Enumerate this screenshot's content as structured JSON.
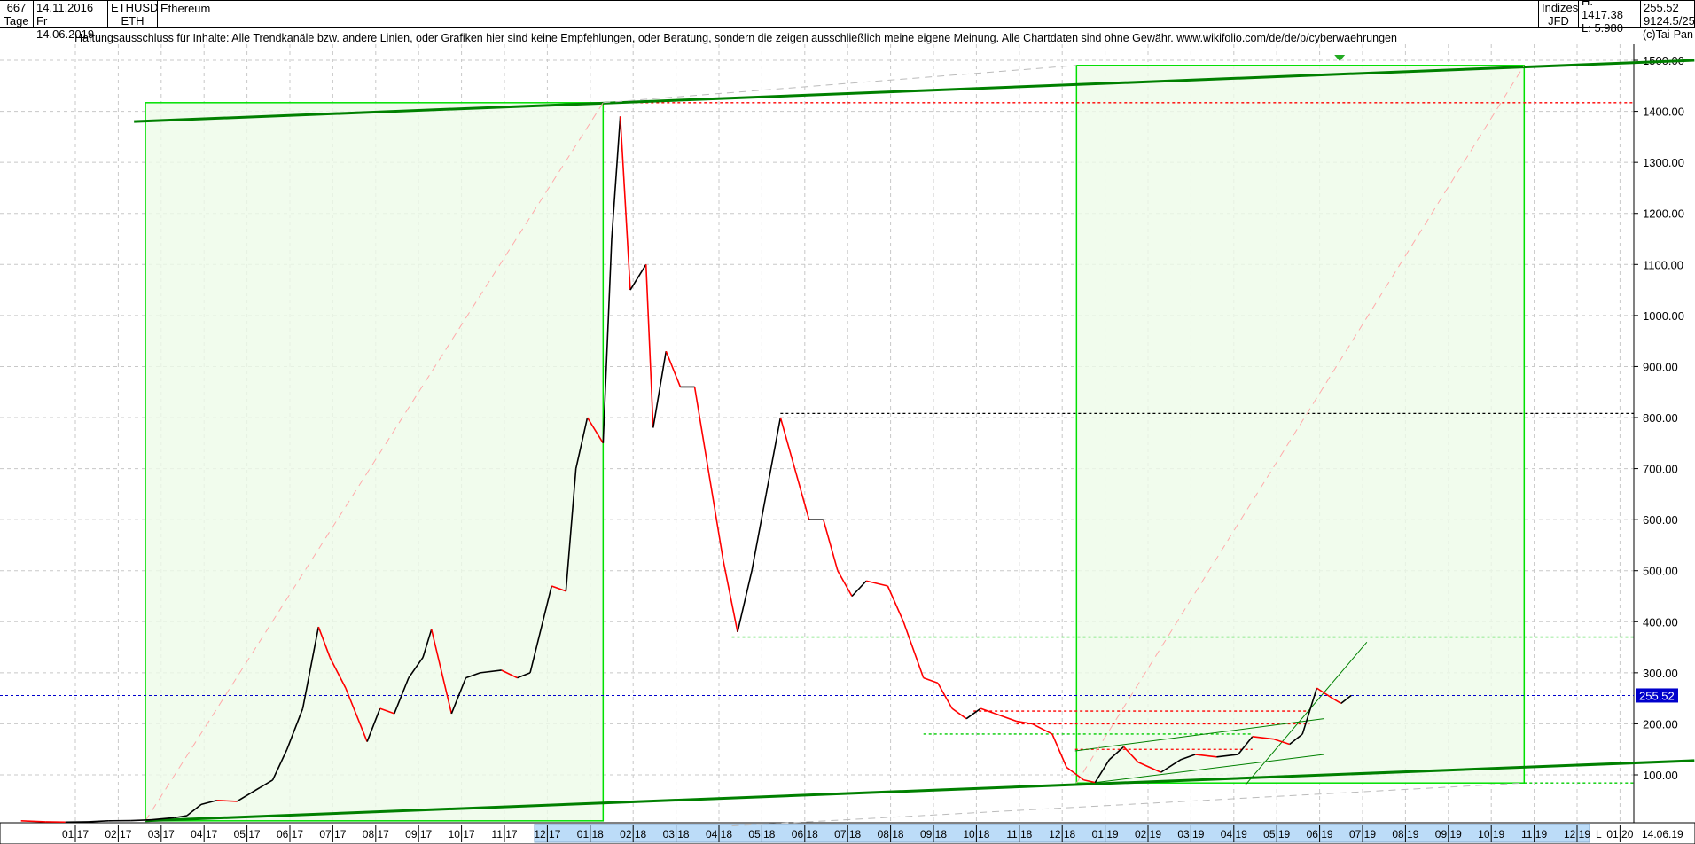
{
  "header": {
    "bars": "667",
    "period": "Tage",
    "date_from": "Mo 14.11.2016",
    "date_to": "Fr 14.06.2019",
    "symbol": "ETHUSD",
    "symbol_short": "ETH",
    "name": "Ethereum",
    "index_label": "Indizes",
    "exchange": "JFD",
    "high": "H: 1417.38",
    "low": "L: 5.980",
    "last": "255.52",
    "extra": "9124.5/25"
  },
  "disclaimer": "Haftungsausschluss für Inhalte: Alle Trendkanäle bzw. andere Linien, oder Grafiken hier sind keine Empfehlungen, oder Beratung, sondern die zeigen ausschließlich meine eigene Meinung. Alle Chartdaten sind ohne Gewähr.  www.wikifolio.com/de/de/p/cyberwaehrungen",
  "copyright": "(c)Tai-Pan",
  "chart_data": {
    "type": "line",
    "title": "Ethereum",
    "ylim": [
      0,
      1560
    ],
    "y_ticks": [
      100,
      200,
      300,
      400,
      500,
      600,
      700,
      800,
      900,
      1000,
      1100,
      1200,
      1300,
      1400,
      1500
    ],
    "y_tick_labels": [
      "100.00",
      "200.00",
      "300.00",
      "400.00",
      "500.00",
      "600.00",
      "700.00",
      "800.00",
      "900.00",
      "1000.00",
      "1100.00",
      "1200.00",
      "1300.00",
      "1400.00",
      "1500.00"
    ],
    "x_ticks": [
      "01 17",
      "02 17",
      "03 17",
      "04 17",
      "05 17",
      "06 17",
      "07 17",
      "08 17",
      "09 17",
      "10 17",
      "11 17",
      "12 17",
      "01 18",
      "02 18",
      "03 18",
      "04 18",
      "05 18",
      "06 18",
      "07 18",
      "08 18",
      "09 18",
      "10 18",
      "11 18",
      "12 18",
      "01 19",
      "02 19",
      "03 19",
      "04 19",
      "05 19",
      "06 19",
      "07 19",
      "08 19",
      "09 19",
      "10 19",
      "11 19",
      "12 19",
      "01 20"
    ],
    "x_end_label": "14.06.19",
    "x_end_flag": "L",
    "grid": true,
    "last_price": 255.52,
    "last_price_label": "255.52",
    "colors": {
      "up": "#000000",
      "down": "#ff0000",
      "box": "#00e000",
      "box_fill": "#eefbe8",
      "trend": "#008000",
      "last": "#0000cc"
    },
    "series": [
      [
        "2016-11-14",
        10
      ],
      [
        "2016-12-01",
        8
      ],
      [
        "2016-12-15",
        7.5
      ],
      [
        "2017-01-01",
        8
      ],
      [
        "2017-01-15",
        10
      ],
      [
        "2017-02-01",
        10.5
      ],
      [
        "2017-02-15",
        12
      ],
      [
        "2017-03-01",
        16
      ],
      [
        "2017-03-10",
        20
      ],
      [
        "2017-03-20",
        42
      ],
      [
        "2017-04-01",
        50
      ],
      [
        "2017-04-15",
        48
      ],
      [
        "2017-05-01",
        75
      ],
      [
        "2017-05-10",
        90
      ],
      [
        "2017-05-20",
        150
      ],
      [
        "2017-05-31",
        230
      ],
      [
        "2017-06-12",
        390
      ],
      [
        "2017-06-20",
        330
      ],
      [
        "2017-07-01",
        270
      ],
      [
        "2017-07-16",
        165
      ],
      [
        "2017-07-25",
        230
      ],
      [
        "2017-08-05",
        220
      ],
      [
        "2017-08-15",
        290
      ],
      [
        "2017-08-25",
        330
      ],
      [
        "2017-09-01",
        385
      ],
      [
        "2017-09-15",
        220
      ],
      [
        "2017-09-25",
        290
      ],
      [
        "2017-10-05",
        300
      ],
      [
        "2017-10-20",
        305
      ],
      [
        "2017-11-01",
        290
      ],
      [
        "2017-11-10",
        300
      ],
      [
        "2017-11-25",
        470
      ],
      [
        "2017-12-05",
        460
      ],
      [
        "2017-12-12",
        700
      ],
      [
        "2017-12-20",
        800
      ],
      [
        "2017-12-31",
        750
      ],
      [
        "2018-01-07",
        1150
      ],
      [
        "2018-01-13",
        1390
      ],
      [
        "2018-01-20",
        1050
      ],
      [
        "2018-01-31",
        1100
      ],
      [
        "2018-02-06",
        780
      ],
      [
        "2018-02-15",
        930
      ],
      [
        "2018-02-25",
        860
      ],
      [
        "2018-03-05",
        860
      ],
      [
        "2018-03-15",
        690
      ],
      [
        "2018-03-25",
        520
      ],
      [
        "2018-04-05",
        380
      ],
      [
        "2018-04-15",
        500
      ],
      [
        "2018-04-25",
        650
      ],
      [
        "2018-05-05",
        800
      ],
      [
        "2018-05-15",
        700
      ],
      [
        "2018-05-25",
        600
      ],
      [
        "2018-06-05",
        600
      ],
      [
        "2018-06-15",
        500
      ],
      [
        "2018-06-25",
        450
      ],
      [
        "2018-07-05",
        480
      ],
      [
        "2018-07-20",
        470
      ],
      [
        "2018-08-01",
        400
      ],
      [
        "2018-08-15",
        290
      ],
      [
        "2018-08-25",
        280
      ],
      [
        "2018-09-05",
        230
      ],
      [
        "2018-09-15",
        210
      ],
      [
        "2018-09-25",
        230
      ],
      [
        "2018-10-05",
        220
      ],
      [
        "2018-10-20",
        205
      ],
      [
        "2018-11-01",
        200
      ],
      [
        "2018-11-15",
        180
      ],
      [
        "2018-11-25",
        115
      ],
      [
        "2018-12-07",
        90
      ],
      [
        "2018-12-15",
        85
      ],
      [
        "2018-12-25",
        130
      ],
      [
        "2019-01-05",
        155
      ],
      [
        "2019-01-15",
        125
      ],
      [
        "2019-01-31",
        105
      ],
      [
        "2019-02-15",
        130
      ],
      [
        "2019-02-25",
        140
      ],
      [
        "2019-03-10",
        135
      ],
      [
        "2019-03-25",
        140
      ],
      [
        "2019-04-05",
        175
      ],
      [
        "2019-04-20",
        170
      ],
      [
        "2019-05-01",
        160
      ],
      [
        "2019-05-10",
        180
      ],
      [
        "2019-05-20",
        270
      ],
      [
        "2019-05-31",
        250
      ],
      [
        "2019-06-07",
        240
      ],
      [
        "2019-06-14",
        255.52
      ]
    ],
    "boxes": [
      {
        "from": "2017-02-11",
        "to": "2018-01-01",
        "low": 10,
        "high": 1417
      },
      {
        "from": "2018-12-02",
        "to": "2019-10-15",
        "low": 84,
        "high": 1490
      }
    ],
    "trend_lines": [
      {
        "from": [
          "2017-02-03",
          1380
        ],
        "to": [
          "2020-02-14",
          1500
        ],
        "color": "#008000",
        "width": 3
      },
      {
        "from": [
          "2017-02-11",
          10
        ],
        "to": [
          "2020-02-14",
          128
        ],
        "color": "#008000",
        "width": 3
      },
      {
        "from": [
          "2018-12-01",
          147
        ],
        "to": [
          "2019-05-25",
          210
        ],
        "color": "#008000",
        "width": 1
      },
      {
        "from": [
          "2018-12-01",
          80
        ],
        "to": [
          "2019-05-25",
          140
        ],
        "color": "#008000",
        "width": 1
      },
      {
        "from": [
          "2019-03-30",
          80
        ],
        "to": [
          "2019-06-25",
          360
        ],
        "color": "#008000",
        "width": 1
      },
      {
        "from": [
          "2018-01-01",
          1417
        ],
        "to": [
          "2018-12-02",
          1490
        ],
        "color": "#bbbbbb",
        "width": 1,
        "dash": true
      },
      {
        "from": [
          "2018-04-01",
          0
        ],
        "to": [
          "2019-10-15",
          84
        ],
        "color": "#bbbbbb",
        "width": 1,
        "dash": true
      },
      {
        "from": [
          "2017-02-11",
          10
        ],
        "to": [
          "2018-01-01",
          1417
        ],
        "color": "#ffaaaa",
        "width": 1,
        "dash": true
      },
      {
        "from": [
          "2018-12-02",
          84
        ],
        "to": [
          "2019-10-15",
          1490
        ],
        "color": "#ffaaaa",
        "width": 1,
        "dash": true
      }
    ],
    "levels": [
      {
        "value": 1417,
        "from": "2018-01-01",
        "to": "2020-02-14",
        "color": "#ff0000"
      },
      {
        "value": 808,
        "from": "2018-05-05",
        "to": "2020-02-14",
        "color": "#000000"
      },
      {
        "value": 370,
        "from": "2018-04-01",
        "to": "2020-02-14",
        "color": "#00cc00"
      },
      {
        "value": 225,
        "from": "2018-09-20",
        "to": "2019-05-15",
        "color": "#ff0000"
      },
      {
        "value": 200,
        "from": "2018-10-20",
        "to": "2019-05-15",
        "color": "#ff0000"
      },
      {
        "value": 150,
        "from": "2018-12-01",
        "to": "2019-04-05",
        "color": "#ff0000"
      },
      {
        "value": 180,
        "from": "2018-08-15",
        "to": "2019-04-05",
        "color": "#00cc00"
      },
      {
        "value": 84,
        "from": "2019-10-15",
        "to": "2020-02-14",
        "color": "#00cc00"
      }
    ]
  }
}
